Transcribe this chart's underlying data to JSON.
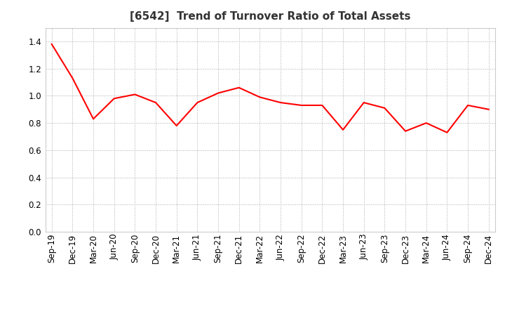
{
  "title": "[6542]  Trend of Turnover Ratio of Total Assets",
  "line_color": "#ff0000",
  "line_width": 1.5,
  "background_color": "#ffffff",
  "grid_color": "#aaaaaa",
  "ylim": [
    0.0,
    1.5
  ],
  "yticks": [
    0.0,
    0.2,
    0.4,
    0.6,
    0.8,
    1.0,
    1.2,
    1.4
  ],
  "x_labels": [
    "Sep-19",
    "Dec-19",
    "Mar-20",
    "Jun-20",
    "Sep-20",
    "Dec-20",
    "Mar-21",
    "Jun-21",
    "Sep-21",
    "Dec-21",
    "Mar-22",
    "Jun-22",
    "Sep-22",
    "Dec-22",
    "Mar-23",
    "Jun-23",
    "Sep-23",
    "Dec-23",
    "Mar-24",
    "Jun-24",
    "Sep-24",
    "Dec-24"
  ],
  "values": [
    1.38,
    1.13,
    0.83,
    0.98,
    1.01,
    0.95,
    0.78,
    0.95,
    1.02,
    1.06,
    0.99,
    0.95,
    0.93,
    0.93,
    0.75,
    0.95,
    0.91,
    0.74,
    0.8,
    0.73,
    0.93,
    0.9
  ],
  "title_fontsize": 11,
  "tick_fontsize": 8.5
}
